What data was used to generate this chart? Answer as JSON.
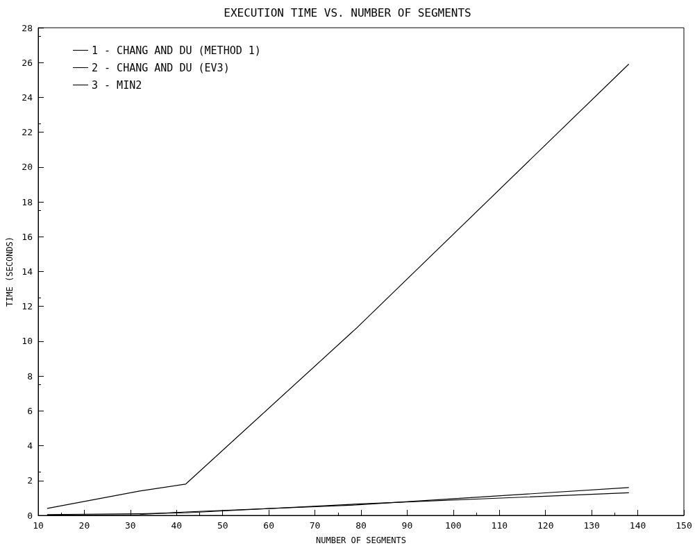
{
  "chart_data": {
    "type": "line",
    "title": "EXECUTION TIME VS. NUMBER OF SEGMENTS",
    "xlabel": "NUMBER OF SEGMENTS",
    "ylabel": "TIME (SECONDS)",
    "x": [
      12,
      32,
      42,
      79,
      138
    ],
    "series": [
      {
        "name": "1 - CHANG AND DU (METHOD 1)",
        "color": "#000000",
        "values": [
          0.4,
          1.4,
          1.8,
          10.75,
          25.9
        ]
      },
      {
        "name": "2 - CHANG AND DU (EV3)",
        "color": "#000000",
        "values": [
          0.05,
          0.1,
          0.15,
          0.65,
          1.3
        ]
      },
      {
        "name": "3 - MIN2",
        "color": "#000000",
        "values": [
          0.02,
          0.05,
          0.2,
          0.6,
          1.6
        ]
      }
    ],
    "xlim": [
      10,
      150
    ],
    "xticks": [
      10,
      20,
      30,
      40,
      50,
      60,
      70,
      80,
      90,
      100,
      110,
      120,
      130,
      140,
      150
    ],
    "ylim": [
      0,
      28
    ],
    "yticks": [
      0,
      2,
      4,
      6,
      8,
      10,
      12,
      14,
      16,
      18,
      20,
      22,
      24,
      26,
      28
    ],
    "grid": false,
    "legend": "top left",
    "marker": "none",
    "line_style": "solid"
  }
}
